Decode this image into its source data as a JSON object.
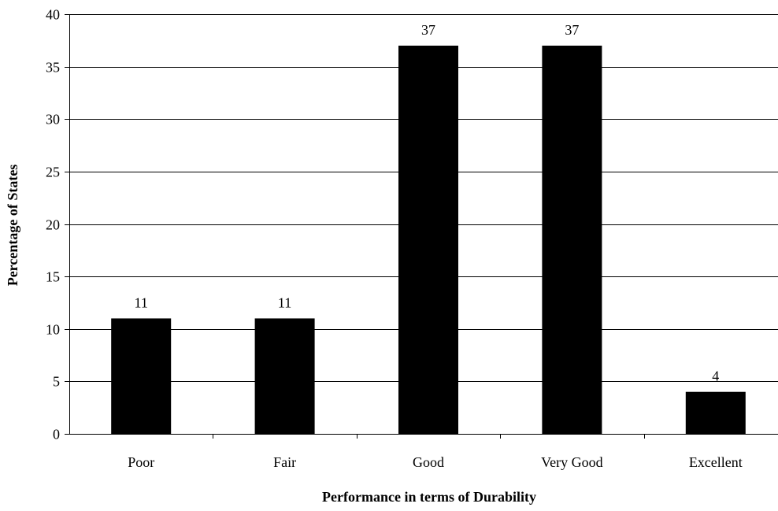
{
  "chart_data": {
    "type": "bar",
    "categories": [
      "Poor",
      "Fair",
      "Good",
      "Very Good",
      "Excellent"
    ],
    "values": [
      11,
      11,
      37,
      37,
      4
    ],
    "data_labels": [
      "11",
      "11",
      "37",
      "37",
      "4"
    ],
    "title": "",
    "xlabel": "Performance in terms of Durability",
    "ylabel": "Percentage of States",
    "ylim": [
      0,
      40
    ],
    "yticks": [
      0,
      5,
      10,
      15,
      20,
      25,
      30,
      35,
      40
    ],
    "grid": true,
    "legend": "none",
    "bar_color": "#000000",
    "grid_color": "#000000"
  }
}
